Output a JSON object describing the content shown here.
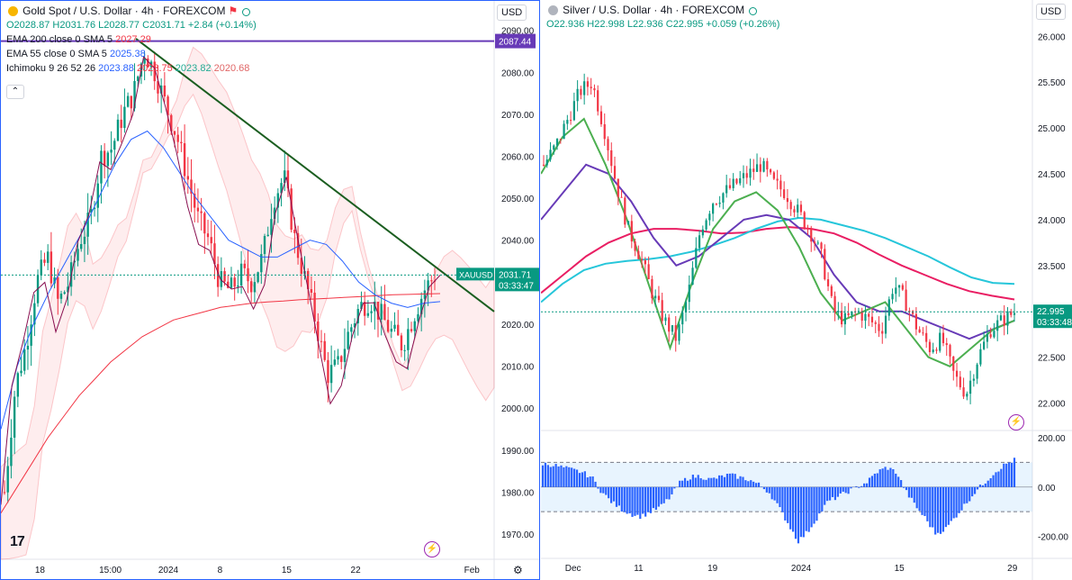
{
  "left": {
    "title": "Gold Spot / U.S. Dollar · 4h · FOREXCOM",
    "ohlc": {
      "o": "O2028.87",
      "h": "H2031.76",
      "l": "L2028.77",
      "c": "C2031.71",
      "chg": "+2.84 (+0.14%)"
    },
    "ind1": {
      "label": "EMA 200 close 0 SMA 5",
      "v1": "2027.29"
    },
    "ind2": {
      "label": "EMA 55 close 0 SMA 5",
      "v1": "2025.38"
    },
    "ind3": {
      "label": "Ichimoku 9 26 52 26",
      "v1": "2023.88",
      "v2": "2023.75",
      "v3": "2023.82",
      "v4": "2020.68"
    },
    "currency": "USD",
    "symbol_tag": "XAUUSD",
    "price_tag": "2031.71",
    "timer_tag": "03:33:47",
    "hline_tag": "2087.44",
    "colors": {
      "up": "#089981",
      "down": "#f23645",
      "ema200": "#f23645",
      "ema55": "#2962ff",
      "trend": "#1b5e20",
      "hline": "#673ab7"
    }
  },
  "right": {
    "title": "Silver / U.S. Dollar · 4h · FOREXCOM",
    "ohlc": {
      "o": "O22.936",
      "h": "H22.998",
      "l": "L22.936",
      "c": "C22.995",
      "chg": "+0.059 (+0.26%)"
    },
    "currency": "USD",
    "price_tag": "22.995",
    "timer_tag": "03:33:48",
    "colors": {
      "up": "#089981",
      "down": "#f23645",
      "ma_red": "#e91e63",
      "ma_cyan": "#26c6da",
      "ma_purple": "#673ab7",
      "ma_green": "#4caf50",
      "osc": "#2962ff"
    }
  },
  "chart_data": [
    {
      "type": "line",
      "title": "Gold Spot / U.S. Dollar · 4h · FOREXCOM",
      "ylim": [
        1964,
        2094
      ],
      "y_ticks": [
        "2090.00",
        "2080.00",
        "2070.00",
        "2060.00",
        "2050.00",
        "2040.00",
        "2030.00",
        "2020.00",
        "2010.00",
        "2000.00",
        "1990.00",
        "1980.00",
        "1970.00"
      ],
      "x_ticks": [
        "18",
        "15:00",
        "2024",
        "8",
        "15",
        "22",
        "Feb"
      ],
      "series": [
        {
          "name": "Gold close",
          "values": [
            1980,
            2005,
            2015,
            2030,
            2036,
            2025,
            2030,
            2040,
            2045,
            2060,
            2062,
            2070,
            2075,
            2085,
            2080,
            2072,
            2065,
            2055,
            2045,
            2040,
            2030,
            2028,
            2032,
            2030,
            2036,
            2050,
            2055,
            2040,
            2030,
            2020,
            2008,
            2010,
            2018,
            2024,
            2026,
            2022,
            2018,
            2015,
            2022,
            2028,
            2031.71
          ]
        },
        {
          "name": "EMA 200",
          "values": [
            1975,
            1981,
            1987,
            1993,
            1998,
            2003,
            2007,
            2011,
            2014,
            2017,
            2019,
            2021,
            2022,
            2023,
            2024,
            2024.5,
            2025,
            2025.3,
            2025.5,
            2025.8,
            2026,
            2026.2,
            2026.4,
            2026.6,
            2026.8,
            2027,
            2027.1,
            2027.2,
            2027.29
          ]
        },
        {
          "name": "EMA 55",
          "values": [
            1995,
            2010,
            2020,
            2028,
            2035,
            2042,
            2050,
            2058,
            2064,
            2066,
            2062,
            2056,
            2050,
            2045,
            2040,
            2038,
            2036,
            2036,
            2038,
            2040,
            2039,
            2035,
            2030,
            2027,
            2025,
            2024,
            2025,
            2025.38
          ]
        },
        {
          "name": "Trend line",
          "values": [
            2088,
            2023
          ]
        },
        {
          "name": "Horizontal level",
          "values": [
            2087.44
          ]
        }
      ]
    },
    {
      "type": "line",
      "title": "Silver / U.S. Dollar · 4h · FOREXCOM",
      "ylim": [
        21.7,
        26.2
      ],
      "y_ticks": [
        "26.000",
        "25.500",
        "25.000",
        "24.500",
        "24.000",
        "23.500",
        "23.000",
        "22.500",
        "22.000"
      ],
      "x_ticks": [
        "Dec",
        "11",
        "19",
        "2024",
        "15",
        "29"
      ],
      "series": [
        {
          "name": "Silver close",
          "values": [
            24.6,
            24.8,
            25.1,
            25.4,
            25.5,
            25.0,
            24.4,
            23.9,
            23.6,
            23.2,
            22.9,
            22.7,
            23.2,
            23.9,
            24.2,
            24.3,
            24.4,
            24.5,
            24.6,
            24.4,
            24.3,
            24.1,
            23.9,
            23.6,
            23.0,
            22.9,
            23.0,
            22.9,
            22.8,
            23.3,
            23.1,
            22.8,
            22.6,
            22.7,
            22.3,
            22.1,
            22.5,
            22.8,
            22.9,
            22.995
          ]
        },
        {
          "name": "MA red",
          "values": [
            23.2,
            23.4,
            23.6,
            23.75,
            23.85,
            23.9,
            23.9,
            23.88,
            23.85,
            23.86,
            23.9,
            23.92,
            23.9,
            23.85,
            23.75,
            23.62,
            23.5,
            23.4,
            23.3,
            23.22,
            23.17,
            23.13
          ]
        },
        {
          "name": "MA cyan",
          "values": [
            23.1,
            23.3,
            23.45,
            23.52,
            23.55,
            23.57,
            23.6,
            23.65,
            23.72,
            23.8,
            23.9,
            23.98,
            24.02,
            24.0,
            23.94,
            23.88,
            23.8,
            23.7,
            23.6,
            23.48,
            23.37,
            23.31,
            23.3
          ]
        },
        {
          "name": "MA purple",
          "values": [
            24.0,
            24.3,
            24.6,
            24.5,
            24.2,
            23.8,
            23.5,
            23.6,
            23.8,
            24.0,
            24.05,
            24.0,
            23.8,
            23.4,
            23.1,
            23.0,
            23.0,
            22.9,
            22.8,
            22.7,
            22.8,
            22.9
          ]
        },
        {
          "name": "MA green",
          "values": [
            24.5,
            24.9,
            25.1,
            24.6,
            24.0,
            23.3,
            22.6,
            23.3,
            23.9,
            24.2,
            24.3,
            24.1,
            23.7,
            23.2,
            22.9,
            23.0,
            23.1,
            22.8,
            22.5,
            22.4,
            22.6,
            22.8,
            22.9
          ]
        }
      ]
    },
    {
      "type": "bar",
      "title": "",
      "ylim": [
        -260,
        200
      ],
      "y_ticks": [
        "200.00",
        "0.00",
        "-200.00"
      ],
      "series": [
        {
          "name": "Oscillator",
          "values": [
            95,
            90,
            80,
            70,
            60,
            40,
            -20,
            -60,
            -90,
            -110,
            -120,
            -100,
            -80,
            -40,
            20,
            40,
            45,
            30,
            40,
            50,
            40,
            30,
            10,
            -20,
            -80,
            -150,
            -220,
            -180,
            -120,
            -60,
            -40,
            -20,
            0,
            20,
            60,
            80,
            60,
            -20,
            -80,
            -130,
            -190,
            -170,
            -120,
            -70,
            -20,
            20,
            60,
            90,
            110
          ]
        }
      ]
    }
  ]
}
